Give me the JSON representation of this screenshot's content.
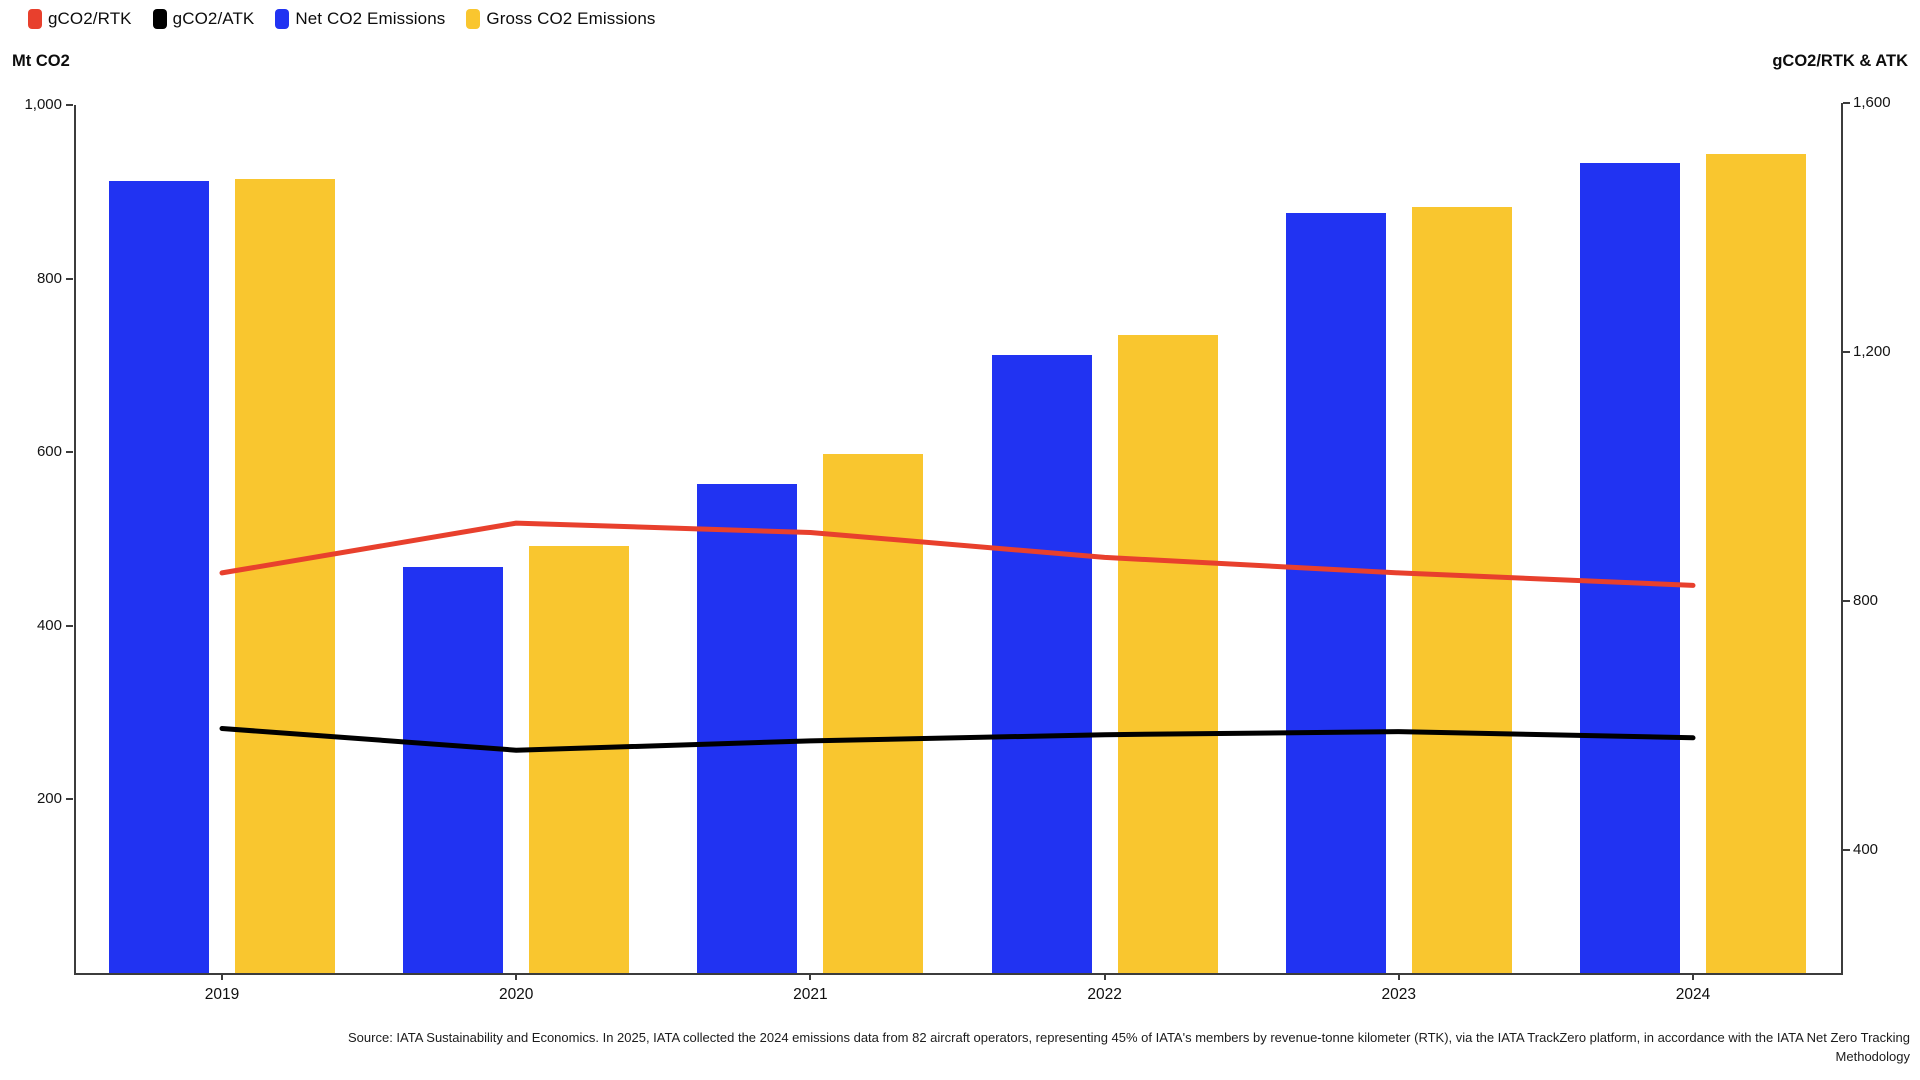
{
  "legend": {
    "items": [
      {
        "label": "gCO2/RTK",
        "color": "#e8402d"
      },
      {
        "label": "gCO2/ATK",
        "color": "#000000"
      },
      {
        "label": "Net CO2 Emissions",
        "color": "#2133f2"
      },
      {
        "label": "Gross CO2 Emissions",
        "color": "#f9c62f"
      }
    ]
  },
  "chart_data": {
    "type": "combo-bar-line",
    "categories": [
      "2019",
      "2020",
      "2021",
      "2022",
      "2023",
      "2024"
    ],
    "bar_series": [
      {
        "name": "Net CO2 Emissions",
        "axis": "left",
        "color": "#2133f2",
        "values": [
          913,
          468,
          563,
          712,
          876,
          933
        ]
      },
      {
        "name": "Gross CO2 Emissions",
        "axis": "left",
        "color": "#f9c62f",
        "values": [
          915,
          492,
          598,
          735,
          883,
          944
        ]
      }
    ],
    "line_series": [
      {
        "name": "gCO2/RTK",
        "axis": "right",
        "color": "#e8402d",
        "values": [
          845,
          925,
          910,
          870,
          845,
          825
        ]
      },
      {
        "name": "gCO2/ATK",
        "axis": "right",
        "color": "#000000",
        "values": [
          595,
          560,
          575,
          585,
          590,
          580
        ]
      }
    ],
    "left_axis": {
      "title": "Mt CO2",
      "min": 0,
      "max": 1000,
      "ticks": [
        {
          "label": "1,000",
          "value": 1000
        },
        {
          "label": "800",
          "value": 800
        },
        {
          "label": "600",
          "value": 600
        },
        {
          "label": "400",
          "value": 400
        },
        {
          "label": "200",
          "value": 200
        }
      ]
    },
    "right_axis": {
      "title": "gCO2/RTK & ATK",
      "baseline_value": 202,
      "top_value": 1597,
      "ticks": [
        {
          "label": "1,600",
          "value": 1600
        },
        {
          "label": "1,200",
          "value": 1200
        },
        {
          "label": "800",
          "value": 800
        },
        {
          "label": "400",
          "value": 400
        }
      ]
    },
    "grid": false,
    "legend_position": "top-left"
  },
  "footer": {
    "line1": "Source: IATA Sustainability and Economics. In 2025, IATA collected the 2024 emissions data from 82 aircraft operators, representing 45% of IATA's members by revenue-tonne kilometer (RTK), via the IATA TrackZero platform, in accordance with the IATA Net Zero Tracking",
    "line2": "Methodology"
  }
}
